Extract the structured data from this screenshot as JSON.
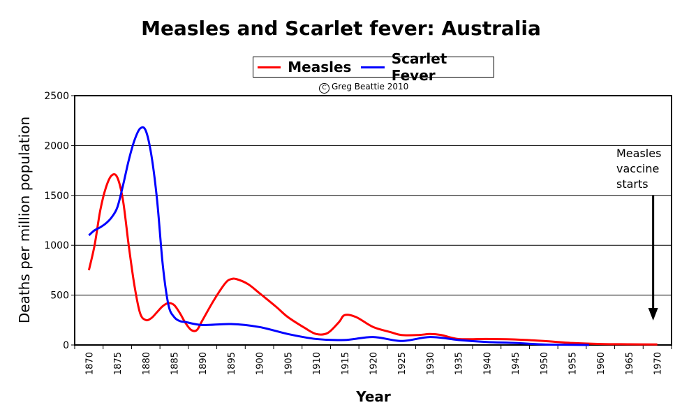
{
  "chart_data": {
    "type": "line",
    "title": "Measles and Scarlet fever: Australia",
    "subtitle": "Greg Beattie 2010",
    "copyright_symbol": "C",
    "xlabel": "Year",
    "ylabel": "Deaths per million population",
    "xlim": [
      1867.5,
      1972.5
    ],
    "ylim": [
      0,
      2500
    ],
    "yticks": [
      0,
      500,
      1000,
      1500,
      2000,
      2500
    ],
    "xticks": [
      1870,
      1875,
      1880,
      1885,
      1890,
      1895,
      1900,
      1905,
      1910,
      1915,
      1920,
      1925,
      1930,
      1935,
      1940,
      1945,
      1950,
      1955,
      1960,
      1965,
      1970
    ],
    "grid": true,
    "legend": "top-center",
    "annotation": "Measles\nvaccine\nstarts",
    "annotation_year": 1970,
    "series": [
      {
        "name": "Measles",
        "color": "#ff0000",
        "x": [
          1870,
          1871,
          1872,
          1873,
          1874,
          1875,
          1876,
          1877,
          1878,
          1879,
          1880,
          1881,
          1882,
          1883,
          1884,
          1885,
          1886,
          1887,
          1888,
          1889,
          1890,
          1892,
          1894,
          1895,
          1896,
          1898,
          1900,
          1903,
          1905,
          1908,
          1910,
          1912,
          1914,
          1915,
          1917,
          1920,
          1923,
          1925,
          1928,
          1930,
          1932,
          1935,
          1940,
          1945,
          1950,
          1955,
          1960,
          1965,
          1970
        ],
        "y": [
          750,
          1000,
          1350,
          1580,
          1700,
          1680,
          1450,
          1000,
          600,
          320,
          250,
          270,
          330,
          390,
          420,
          400,
          320,
          220,
          150,
          150,
          250,
          450,
          620,
          660,
          660,
          610,
          520,
          380,
          280,
          170,
          110,
          120,
          230,
          300,
          280,
          180,
          130,
          100,
          100,
          110,
          100,
          60,
          60,
          55,
          40,
          20,
          10,
          7,
          5
        ]
      },
      {
        "name": "Scarlet Fever",
        "color": "#0000ff",
        "x": [
          1870,
          1871,
          1872,
          1873,
          1874,
          1875,
          1876,
          1877,
          1878,
          1879,
          1880,
          1881,
          1882,
          1883,
          1884,
          1885,
          1886,
          1887,
          1890,
          1895,
          1900,
          1905,
          1910,
          1915,
          1920,
          1925,
          1930,
          1935,
          1940,
          1945,
          1950,
          1955,
          1958
        ],
        "y": [
          1100,
          1150,
          1180,
          1220,
          1280,
          1380,
          1600,
          1850,
          2050,
          2170,
          2150,
          1900,
          1450,
          800,
          400,
          280,
          240,
          230,
          200,
          210,
          180,
          110,
          60,
          50,
          80,
          40,
          80,
          50,
          30,
          20,
          5,
          2,
          0
        ]
      }
    ]
  }
}
